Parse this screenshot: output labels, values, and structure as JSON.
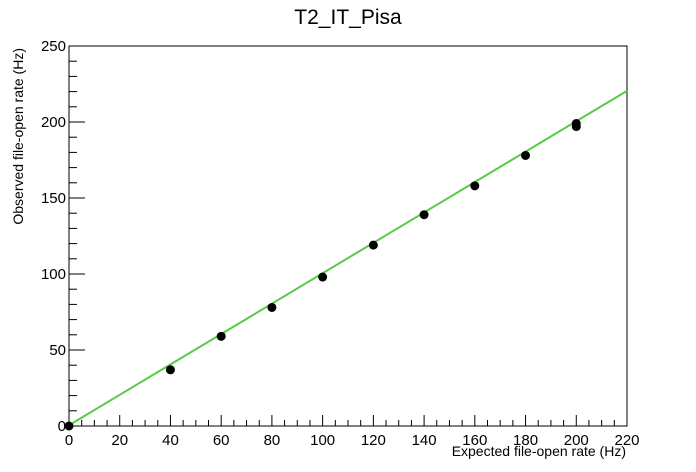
{
  "chart_data": {
    "type": "scatter",
    "title": "T2_IT_Pisa",
    "xlabel": "Expected file-open rate (Hz)",
    "ylabel": "Observed file-open rate (Hz)",
    "xlim": [
      0,
      220
    ],
    "ylim": [
      0,
      250
    ],
    "x_ticks": [
      0,
      20,
      40,
      60,
      80,
      100,
      120,
      140,
      160,
      180,
      200,
      220
    ],
    "y_ticks": [
      0,
      50,
      100,
      150,
      200,
      250
    ],
    "grid": false,
    "legend": "none",
    "points": [
      {
        "x": 0,
        "y": 0
      },
      {
        "x": 40,
        "y": 37
      },
      {
        "x": 60,
        "y": 59
      },
      {
        "x": 80,
        "y": 78
      },
      {
        "x": 100,
        "y": 98
      },
      {
        "x": 120,
        "y": 119
      },
      {
        "x": 140,
        "y": 139
      },
      {
        "x": 160,
        "y": 158
      },
      {
        "x": 180,
        "y": 178
      },
      {
        "x": 200,
        "y": 197
      },
      {
        "x": 200,
        "y": 199
      }
    ],
    "fit_line": {
      "slope": 1.0,
      "intercept": 0.5,
      "color": "#55cc44"
    },
    "marker_color": "#000000"
  }
}
